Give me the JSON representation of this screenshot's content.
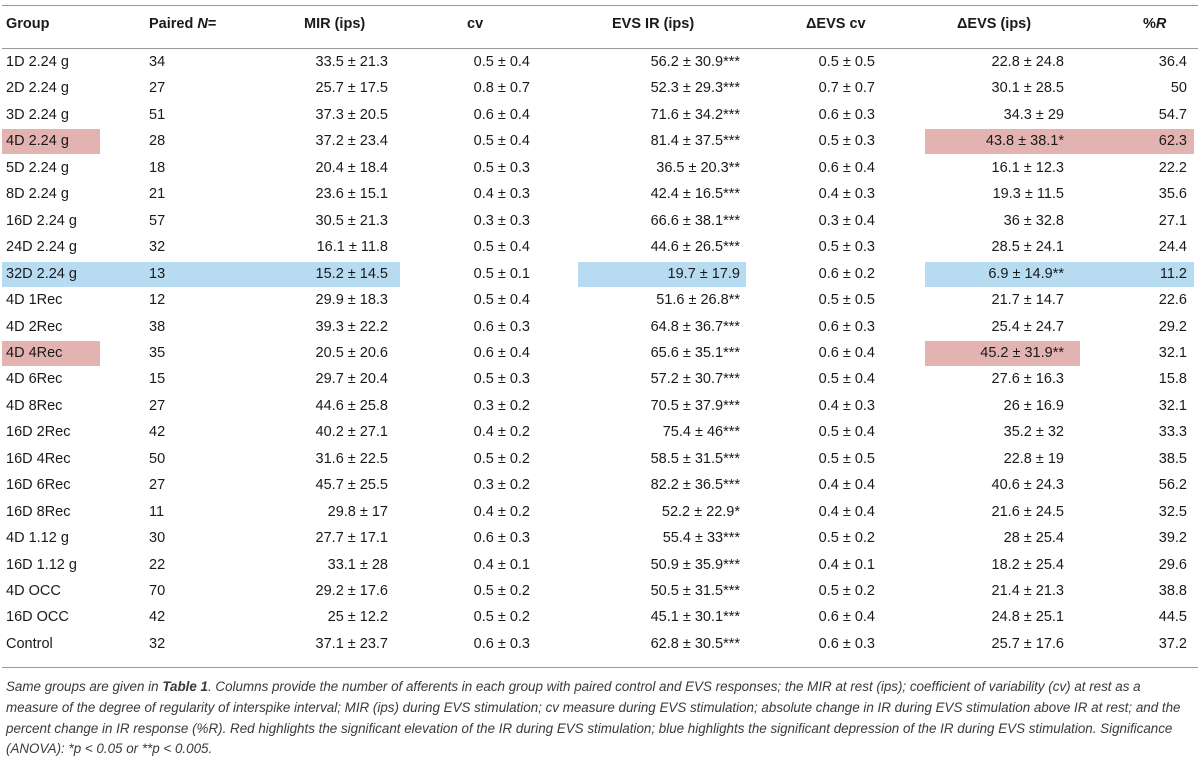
{
  "headers": {
    "group": "Group",
    "paired_n_prefix": "Paired ",
    "paired_n_var": "N",
    "paired_n_suffix": "=",
    "mir": "MIR (ips)",
    "cv": "cv",
    "evs_ir": "EVS IR (ips)",
    "delta_evs_cv": "ΔEVS cv",
    "delta_evs": "ΔEVS (ips)",
    "pct_r_prefix": "%",
    "pct_r_var": "R"
  },
  "rows": [
    {
      "group": "1D 2.24 g",
      "n": "34",
      "mir": "33.5 ± 21.3",
      "cv": "0.5 ± 0.4",
      "evs_ir": "56.2 ± 30.9***",
      "d_cv": "0.5 ± 0.5",
      "d_evs": "22.8 ± 24.8",
      "pct": "36.4",
      "hl": ""
    },
    {
      "group": "2D 2.24 g",
      "n": "27",
      "mir": "25.7 ± 17.5",
      "cv": "0.8 ± 0.7",
      "evs_ir": "52.3 ± 29.3***",
      "d_cv": "0.7 ± 0.7",
      "d_evs": "30.1 ± 28.5",
      "pct": "50",
      "hl": ""
    },
    {
      "group": "3D 2.24 g",
      "n": "51",
      "mir": "37.3 ± 20.5",
      "cv": "0.6 ± 0.4",
      "evs_ir": "71.6 ± 34.2***",
      "d_cv": "0.6 ± 0.3",
      "d_evs": "34.3 ± 29",
      "pct": "54.7",
      "hl": ""
    },
    {
      "group": "4D 2.24 g",
      "n": "28",
      "mir": "37.2 ± 23.4",
      "cv": "0.5 ± 0.4",
      "evs_ir": "81.4 ± 37.5***",
      "d_cv": "0.5 ± 0.3",
      "d_evs": "43.8 ± 38.1*",
      "pct": "62.3",
      "hl": "red-a"
    },
    {
      "group": "5D 2.24 g",
      "n": "18",
      "mir": "20.4 ± 18.4",
      "cv": "0.5 ± 0.3",
      "evs_ir": "36.5 ± 20.3**",
      "d_cv": "0.6 ± 0.4",
      "d_evs": "16.1 ± 12.3",
      "pct": "22.2",
      "hl": ""
    },
    {
      "group": "8D 2.24 g",
      "n": "21",
      "mir": "23.6 ± 15.1",
      "cv": "0.4 ± 0.3",
      "evs_ir": "42.4 ± 16.5***",
      "d_cv": "0.4 ± 0.3",
      "d_evs": "19.3 ± 11.5",
      "pct": "35.6",
      "hl": ""
    },
    {
      "group": "16D 2.24 g",
      "n": "57",
      "mir": "30.5 ± 21.3",
      "cv": "0.3 ± 0.3",
      "evs_ir": "66.6 ± 38.1***",
      "d_cv": "0.3 ± 0.4",
      "d_evs": "36 ± 32.8",
      "pct": "27.1",
      "hl": ""
    },
    {
      "group": "24D 2.24 g",
      "n": "32",
      "mir": "16.1 ± 11.8",
      "cv": "0.5 ± 0.4",
      "evs_ir": "44.6 ± 26.5***",
      "d_cv": "0.5 ± 0.3",
      "d_evs": "28.5 ± 24.1",
      "pct": "24.4",
      "hl": ""
    },
    {
      "group": "32D 2.24 g",
      "n": "13",
      "mir": "15.2 ± 14.5",
      "cv": "0.5 ± 0.1",
      "evs_ir": "19.7 ± 17.9",
      "d_cv": "0.6 ± 0.2",
      "d_evs": "6.9 ± 14.9**",
      "pct": "11.2",
      "hl": "blue"
    },
    {
      "group": "4D 1Rec",
      "n": "12",
      "mir": "29.9 ± 18.3",
      "cv": "0.5 ± 0.4",
      "evs_ir": "51.6 ± 26.8**",
      "d_cv": "0.5 ± 0.5",
      "d_evs": "21.7 ± 14.7",
      "pct": "22.6",
      "hl": ""
    },
    {
      "group": "4D 2Rec",
      "n": "38",
      "mir": "39.3 ± 22.2",
      "cv": "0.6 ± 0.3",
      "evs_ir": "64.8 ± 36.7***",
      "d_cv": "0.6 ± 0.3",
      "d_evs": "25.4 ± 24.7",
      "pct": "29.2",
      "hl": ""
    },
    {
      "group": "4D 4Rec",
      "n": "35",
      "mir": "20.5 ± 20.6",
      "cv": "0.6 ± 0.4",
      "evs_ir": "65.6 ± 35.1***",
      "d_cv": "0.6 ± 0.4",
      "d_evs": "45.2 ± 31.9**",
      "pct": "32.1",
      "hl": "red-b"
    },
    {
      "group": "4D 6Rec",
      "n": "15",
      "mir": "29.7 ± 20.4",
      "cv": "0.5 ± 0.3",
      "evs_ir": "57.2 ± 30.7***",
      "d_cv": "0.5 ± 0.4",
      "d_evs": "27.6 ± 16.3",
      "pct": "15.8",
      "hl": ""
    },
    {
      "group": "4D 8Rec",
      "n": "27",
      "mir": "44.6 ± 25.8",
      "cv": "0.3 ± 0.2",
      "evs_ir": "70.5 ± 37.9***",
      "d_cv": "0.4 ± 0.3",
      "d_evs": "26 ± 16.9",
      "pct": "32.1",
      "hl": ""
    },
    {
      "group": "16D 2Rec",
      "n": "42",
      "mir": "40.2 ± 27.1",
      "cv": "0.4 ± 0.2",
      "evs_ir": "75.4 ± 46***",
      "d_cv": "0.5 ± 0.4",
      "d_evs": "35.2 ± 32",
      "pct": "33.3",
      "hl": ""
    },
    {
      "group": "16D 4Rec",
      "n": "50",
      "mir": "31.6 ± 22.5",
      "cv": "0.5 ± 0.2",
      "evs_ir": "58.5 ± 31.5***",
      "d_cv": "0.5 ± 0.5",
      "d_evs": "22.8 ± 19",
      "pct": "38.5",
      "hl": ""
    },
    {
      "group": "16D 6Rec",
      "n": "27",
      "mir": "45.7 ± 25.5",
      "cv": "0.3 ± 0.2",
      "evs_ir": "82.2 ± 36.5***",
      "d_cv": "0.4 ± 0.4",
      "d_evs": "40.6 ± 24.3",
      "pct": "56.2",
      "hl": ""
    },
    {
      "group": "16D 8Rec",
      "n": "11",
      "mir": "29.8 ± 17",
      "cv": "0.4 ± 0.2",
      "evs_ir": "52.2 ± 22.9*",
      "d_cv": "0.4 ± 0.4",
      "d_evs": "21.6 ± 24.5",
      "pct": "32.5",
      "hl": ""
    },
    {
      "group": "4D 1.12 g",
      "n": "30",
      "mir": "27.7 ± 17.1",
      "cv": "0.6 ± 0.3",
      "evs_ir": "55.4 ± 33***",
      "d_cv": "0.5 ± 0.2",
      "d_evs": "28 ± 25.4",
      "pct": "39.2",
      "hl": ""
    },
    {
      "group": "16D 1.12 g",
      "n": "22",
      "mir": "33.1 ± 28",
      "cv": "0.4 ± 0.1",
      "evs_ir": "50.9 ± 35.9***",
      "d_cv": "0.4 ± 0.1",
      "d_evs": "18.2 ± 25.4",
      "pct": "29.6",
      "hl": ""
    },
    {
      "group": "4D OCC",
      "n": "70",
      "mir": "29.2 ± 17.6",
      "cv": "0.5 ± 0.2",
      "evs_ir": "50.5 ± 31.5***",
      "d_cv": "0.5 ± 0.2",
      "d_evs": "21.4 ± 21.3",
      "pct": "38.8",
      "hl": ""
    },
    {
      "group": "16D OCC",
      "n": "42",
      "mir": "25 ± 12.2",
      "cv": "0.5 ± 0.2",
      "evs_ir": "45.1 ± 30.1***",
      "d_cv": "0.6 ± 0.4",
      "d_evs": "24.8 ± 25.1",
      "pct": "44.5",
      "hl": ""
    },
    {
      "group": "Control",
      "n": "32",
      "mir": "37.1 ± 23.7",
      "cv": "0.6 ± 0.3",
      "evs_ir": "62.8 ± 30.5***",
      "d_cv": "0.6 ± 0.3",
      "d_evs": "25.7 ± 17.6",
      "pct": "37.2",
      "hl": ""
    }
  ],
  "caption": {
    "p1": "Same groups are given in ",
    "table_ref": "Table 1",
    "p2": ". Columns provide the number of afferents in each group with paired control and EVS responses; the MIR at rest (ips); coefficient of variability (cv) at rest as a measure of the degree of regularity of interspike interval; MIR (ips) during EVS stimulation; cv measure during EVS stimulation; absolute change in IR during EVS stimulation above IR at rest; and the percent change in IR response (%R). Red highlights the significant elevation of the IR during EVS stimulation; blue highlights the significant depression of the IR during EVS stimulation. Significance (ANOVA): *p < 0.05 or **p < 0.005."
  },
  "colors": {
    "highlight_red": "#e3b3b2",
    "highlight_blue": "#b7dcf1",
    "rule": "#9a9a9a"
  }
}
